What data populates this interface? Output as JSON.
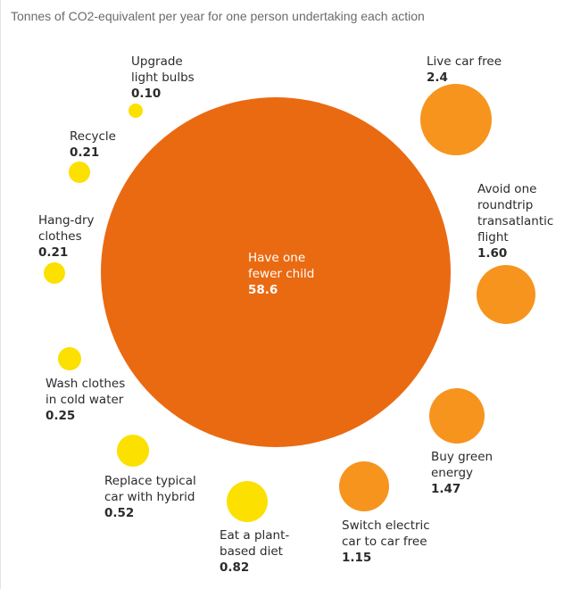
{
  "chart_data": {
    "type": "bubble",
    "title": "Tonnes of CO2-equivalent per year for one person undertaking each action",
    "points": [
      {
        "lines": [
          "Have one",
          "fewer child"
        ],
        "value": "58.6",
        "color": "#ea6a12"
      },
      {
        "lines": [
          "Live car free"
        ],
        "value": "2.4",
        "color": "#f7941d"
      },
      {
        "lines": [
          "Avoid one",
          "roundtrip",
          "transatlantic",
          "flight"
        ],
        "value": "1.60",
        "color": "#f7941d"
      },
      {
        "lines": [
          "Buy green",
          "energy"
        ],
        "value": "1.47",
        "color": "#f7941d"
      },
      {
        "lines": [
          "Switch electric",
          "car to car free"
        ],
        "value": "1.15",
        "color": "#f7941d"
      },
      {
        "lines": [
          "Eat a plant-",
          "based diet"
        ],
        "value": "0.82",
        "color": "#fce000"
      },
      {
        "lines": [
          "Replace typical",
          "car with hybrid"
        ],
        "value": "0.52",
        "color": "#fce000"
      },
      {
        "lines": [
          "Wash clothes",
          "in cold water"
        ],
        "value": "0.25",
        "color": "#fce000"
      },
      {
        "lines": [
          "Hang-dry",
          "clothes"
        ],
        "value": "0.21",
        "color": "#fce000"
      },
      {
        "lines": [
          "Recycle"
        ],
        "value": "0.21",
        "color": "#fce000"
      },
      {
        "lines": [
          "Upgrade",
          "light bulbs"
        ],
        "value": "0.10",
        "color": "#fce000"
      }
    ]
  }
}
